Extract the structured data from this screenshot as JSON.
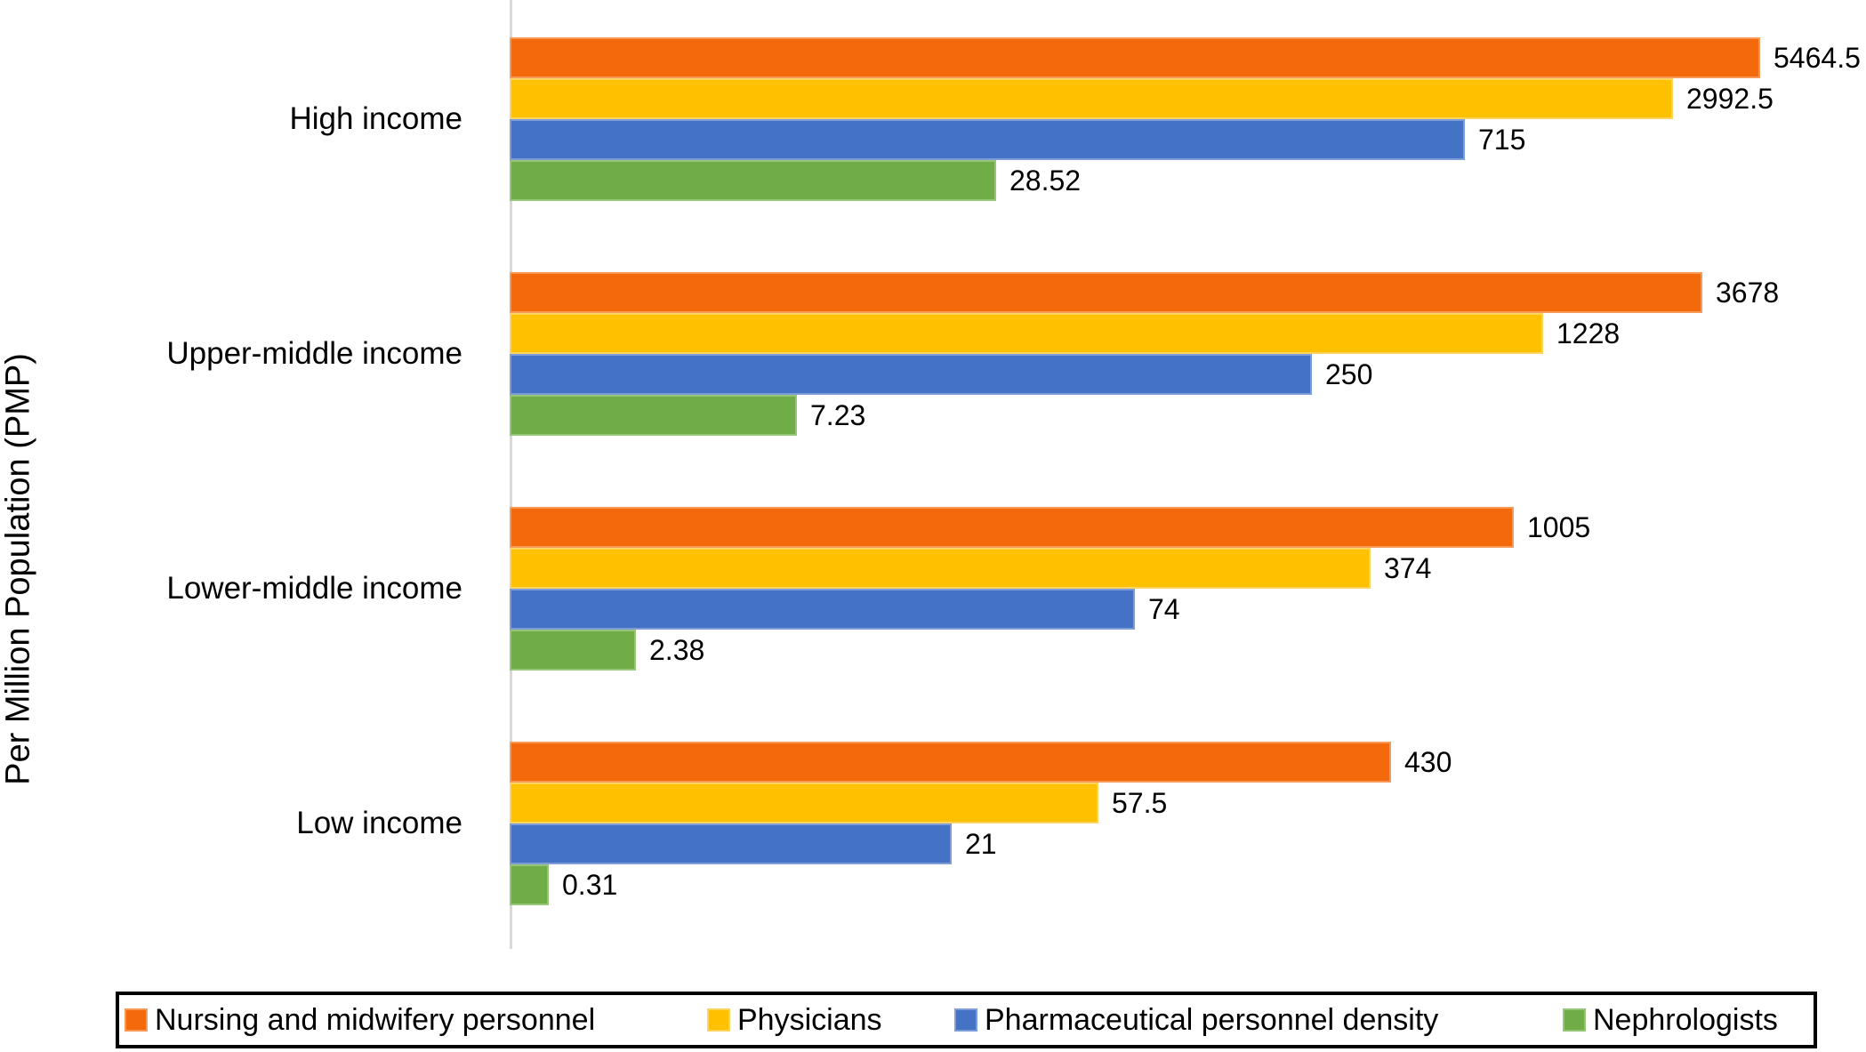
{
  "y_axis_title": "Per Million Population (PMP)",
  "chart_data": {
    "type": "bar",
    "orientation": "horizontal",
    "value_scale": "log10",
    "grid": "off",
    "legend_position": "bottom",
    "ylabel": "Per Million Population (PMP)",
    "categories": [
      "High income",
      "Upper-middle income",
      "Lower-middle income",
      "Low income"
    ],
    "series": [
      {
        "name": "Nursing and midwifery personnel",
        "color": "#F4690C",
        "border_color": "#F89A57",
        "values": [
          5464.5,
          3678,
          1005,
          430
        ],
        "value_labels": [
          "5464.5",
          "3678",
          "1005",
          "430"
        ]
      },
      {
        "name": "Physicians",
        "color": "#FFC000",
        "border_color": "#FFD45E",
        "values": [
          2992.5,
          1228,
          374,
          57.5
        ],
        "value_labels": [
          "2992.5",
          "1228",
          "374",
          "57.5"
        ]
      },
      {
        "name": "Pharmaceutical personnel density",
        "color": "#4472C4",
        "border_color": "#7E9DD8",
        "values": [
          715,
          250,
          74,
          21
        ],
        "value_labels": [
          "715",
          "250",
          "74",
          "21"
        ]
      },
      {
        "name": "Nephrologists",
        "color": "#70AD47",
        "border_color": "#97C577",
        "values": [
          28.52,
          7.23,
          2.38,
          0.31
        ],
        "value_labels": [
          "28.52",
          "7.23",
          "2.38",
          "0.31"
        ]
      }
    ]
  }
}
